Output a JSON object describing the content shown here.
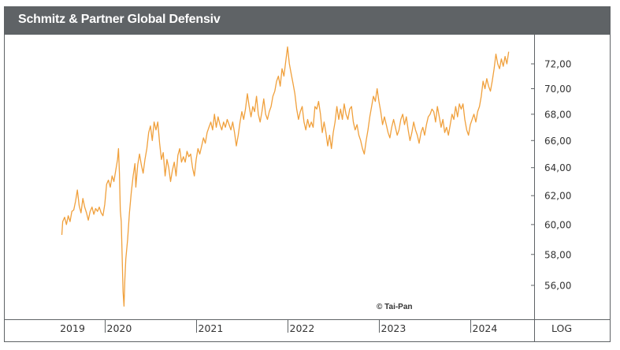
{
  "header": {
    "title": "Schmitz & Partner Global Defensiv"
  },
  "footer": {
    "credit": "© Tai-Pan",
    "scale_mode": "LOG"
  },
  "colors": {
    "line": "#f0a03c",
    "header_bg": "#5f6366",
    "frame": "#5f6366",
    "text": "#333333"
  },
  "chart_data": {
    "type": "line",
    "title": "Schmitz & Partner Global Defensiv",
    "xlabel": "",
    "ylabel": "",
    "yscale": "log",
    "ylim": [
      54.3,
      74.0
    ],
    "xlim": [
      2019.45,
      2024.7
    ],
    "grid": false,
    "legend": "none",
    "y_ticks": [
      {
        "value": 72,
        "label": "72,00"
      },
      {
        "value": 70,
        "label": "70,00"
      },
      {
        "value": 68,
        "label": "68,00"
      },
      {
        "value": 66,
        "label": "66,00"
      },
      {
        "value": 64,
        "label": "64,00"
      },
      {
        "value": 62,
        "label": "62,00"
      },
      {
        "value": 60,
        "label": "60,00"
      },
      {
        "value": 58,
        "label": "58,00"
      },
      {
        "value": 56,
        "label": "56,00"
      }
    ],
    "x_ticks": [
      {
        "value": 2020,
        "label": "2020"
      },
      {
        "value": 2021,
        "label": "2021"
      },
      {
        "value": 2022,
        "label": "2022"
      },
      {
        "value": 2023,
        "label": "2023"
      },
      {
        "value": 2024,
        "label": "2024"
      }
    ],
    "x_first_label": {
      "value": 2019.7,
      "label": "2019"
    },
    "series": [
      {
        "name": "Schmitz & Partner Global Defensiv",
        "points": [
          [
            2019.53,
            59.3
          ],
          [
            2019.54,
            60.2
          ],
          [
            2019.56,
            60.5
          ],
          [
            2019.58,
            60.0
          ],
          [
            2019.6,
            60.6
          ],
          [
            2019.62,
            60.2
          ],
          [
            2019.64,
            60.9
          ],
          [
            2019.66,
            61.0
          ],
          [
            2019.68,
            61.6
          ],
          [
            2019.7,
            62.4
          ],
          [
            2019.72,
            61.3
          ],
          [
            2019.74,
            60.8
          ],
          [
            2019.76,
            61.8
          ],
          [
            2019.78,
            61.2
          ],
          [
            2019.8,
            60.8
          ],
          [
            2019.82,
            60.3
          ],
          [
            2019.84,
            60.9
          ],
          [
            2019.86,
            61.2
          ],
          [
            2019.88,
            60.7
          ],
          [
            2019.9,
            61.1
          ],
          [
            2019.92,
            60.9
          ],
          [
            2019.94,
            61.2
          ],
          [
            2019.96,
            60.8
          ],
          [
            2019.98,
            60.6
          ],
          [
            2020.0,
            61.4
          ],
          [
            2020.02,
            62.8
          ],
          [
            2020.04,
            63.1
          ],
          [
            2020.06,
            62.6
          ],
          [
            2020.08,
            63.4
          ],
          [
            2020.1,
            63.0
          ],
          [
            2020.12,
            63.8
          ],
          [
            2020.14,
            64.6
          ],
          [
            2020.15,
            65.4
          ],
          [
            2020.16,
            63.6
          ],
          [
            2020.17,
            61.0
          ],
          [
            2020.18,
            60.2
          ],
          [
            2020.19,
            58.0
          ],
          [
            2020.2,
            55.6
          ],
          [
            2020.21,
            54.7
          ],
          [
            2020.22,
            56.4
          ],
          [
            2020.23,
            57.7
          ],
          [
            2020.25,
            59.0
          ],
          [
            2020.27,
            60.8
          ],
          [
            2020.29,
            62.2
          ],
          [
            2020.31,
            63.4
          ],
          [
            2020.33,
            64.3
          ],
          [
            2020.34,
            62.6
          ],
          [
            2020.36,
            64.2
          ],
          [
            2020.38,
            65.0
          ],
          [
            2020.4,
            64.2
          ],
          [
            2020.42,
            63.6
          ],
          [
            2020.44,
            64.6
          ],
          [
            2020.46,
            65.4
          ],
          [
            2020.48,
            66.6
          ],
          [
            2020.5,
            67.1
          ],
          [
            2020.52,
            66.0
          ],
          [
            2020.54,
            67.4
          ],
          [
            2020.56,
            66.8
          ],
          [
            2020.58,
            67.4
          ],
          [
            2020.6,
            65.8
          ],
          [
            2020.62,
            64.6
          ],
          [
            2020.64,
            65.1
          ],
          [
            2020.66,
            63.4
          ],
          [
            2020.68,
            64.6
          ],
          [
            2020.7,
            64.0
          ],
          [
            2020.72,
            63.0
          ],
          [
            2020.74,
            63.8
          ],
          [
            2020.76,
            64.4
          ],
          [
            2020.78,
            63.4
          ],
          [
            2020.8,
            64.9
          ],
          [
            2020.82,
            65.4
          ],
          [
            2020.84,
            64.4
          ],
          [
            2020.86,
            64.8
          ],
          [
            2020.88,
            64.4
          ],
          [
            2020.9,
            65.2
          ],
          [
            2020.92,
            64.8
          ],
          [
            2020.94,
            65.0
          ],
          [
            2020.96,
            64.0
          ],
          [
            2020.98,
            63.4
          ],
          [
            2021.0,
            64.6
          ],
          [
            2021.02,
            65.4
          ],
          [
            2021.04,
            65.0
          ],
          [
            2021.06,
            65.6
          ],
          [
            2021.08,
            66.2
          ],
          [
            2021.1,
            65.8
          ],
          [
            2021.12,
            66.6
          ],
          [
            2021.14,
            67.0
          ],
          [
            2021.16,
            67.4
          ],
          [
            2021.18,
            66.8
          ],
          [
            2021.2,
            68.0
          ],
          [
            2021.22,
            67.0
          ],
          [
            2021.24,
            67.8
          ],
          [
            2021.26,
            67.2
          ],
          [
            2021.28,
            66.8
          ],
          [
            2021.3,
            67.4
          ],
          [
            2021.32,
            67.0
          ],
          [
            2021.34,
            67.6
          ],
          [
            2021.36,
            67.2
          ],
          [
            2021.38,
            66.8
          ],
          [
            2021.4,
            67.4
          ],
          [
            2021.42,
            66.6
          ],
          [
            2021.44,
            65.6
          ],
          [
            2021.46,
            66.4
          ],
          [
            2021.48,
            67.4
          ],
          [
            2021.5,
            68.2
          ],
          [
            2021.52,
            67.6
          ],
          [
            2021.54,
            68.4
          ],
          [
            2021.56,
            69.6
          ],
          [
            2021.58,
            68.6
          ],
          [
            2021.6,
            67.8
          ],
          [
            2021.62,
            68.6
          ],
          [
            2021.64,
            68.2
          ],
          [
            2021.66,
            69.4
          ],
          [
            2021.68,
            68.0
          ],
          [
            2021.7,
            67.4
          ],
          [
            2021.72,
            68.2
          ],
          [
            2021.74,
            69.2
          ],
          [
            2021.76,
            68.0
          ],
          [
            2021.78,
            67.6
          ],
          [
            2021.8,
            68.2
          ],
          [
            2021.82,
            68.6
          ],
          [
            2021.84,
            69.4
          ],
          [
            2021.86,
            69.8
          ],
          [
            2021.88,
            70.6
          ],
          [
            2021.9,
            71.0
          ],
          [
            2021.92,
            70.2
          ],
          [
            2021.94,
            71.6
          ],
          [
            2021.96,
            71.0
          ],
          [
            2021.98,
            72.2
          ],
          [
            2022.0,
            73.4
          ],
          [
            2022.02,
            72.0
          ],
          [
            2022.04,
            71.2
          ],
          [
            2022.06,
            70.4
          ],
          [
            2022.08,
            69.6
          ],
          [
            2022.1,
            68.4
          ],
          [
            2022.12,
            67.6
          ],
          [
            2022.14,
            68.2
          ],
          [
            2022.16,
            68.6
          ],
          [
            2022.18,
            67.4
          ],
          [
            2022.2,
            66.8
          ],
          [
            2022.22,
            67.6
          ],
          [
            2022.24,
            67.0
          ],
          [
            2022.26,
            67.4
          ],
          [
            2022.28,
            67.0
          ],
          [
            2022.3,
            68.6
          ],
          [
            2022.32,
            68.4
          ],
          [
            2022.34,
            69.0
          ],
          [
            2022.36,
            68.0
          ],
          [
            2022.38,
            66.6
          ],
          [
            2022.4,
            67.4
          ],
          [
            2022.42,
            66.6
          ],
          [
            2022.44,
            65.6
          ],
          [
            2022.46,
            66.4
          ],
          [
            2022.48,
            65.4
          ],
          [
            2022.5,
            66.6
          ],
          [
            2022.52,
            67.4
          ],
          [
            2022.54,
            68.6
          ],
          [
            2022.56,
            67.6
          ],
          [
            2022.58,
            68.4
          ],
          [
            2022.6,
            67.6
          ],
          [
            2022.62,
            68.8
          ],
          [
            2022.64,
            68.0
          ],
          [
            2022.66,
            67.6
          ],
          [
            2022.68,
            68.4
          ],
          [
            2022.7,
            68.6
          ],
          [
            2022.72,
            67.4
          ],
          [
            2022.74,
            66.8
          ],
          [
            2022.76,
            67.2
          ],
          [
            2022.78,
            66.4
          ],
          [
            2022.8,
            66.0
          ],
          [
            2022.82,
            65.4
          ],
          [
            2022.84,
            65.0
          ],
          [
            2022.86,
            66.0
          ],
          [
            2022.88,
            66.8
          ],
          [
            2022.9,
            67.8
          ],
          [
            2022.92,
            68.6
          ],
          [
            2022.94,
            69.4
          ],
          [
            2022.96,
            69.0
          ],
          [
            2022.98,
            70.0
          ],
          [
            2023.0,
            69.0
          ],
          [
            2023.02,
            68.2
          ],
          [
            2023.04,
            67.2
          ],
          [
            2023.06,
            67.8
          ],
          [
            2023.08,
            67.2
          ],
          [
            2023.1,
            66.6
          ],
          [
            2023.12,
            66.2
          ],
          [
            2023.14,
            67.0
          ],
          [
            2023.16,
            67.6
          ],
          [
            2023.18,
            67.0
          ],
          [
            2023.2,
            66.4
          ],
          [
            2023.22,
            66.8
          ],
          [
            2023.24,
            67.6
          ],
          [
            2023.26,
            68.0
          ],
          [
            2023.28,
            67.2
          ],
          [
            2023.3,
            67.8
          ],
          [
            2023.32,
            66.8
          ],
          [
            2023.34,
            66.0
          ],
          [
            2023.36,
            66.6
          ],
          [
            2023.38,
            67.4
          ],
          [
            2023.4,
            66.8
          ],
          [
            2023.42,
            66.4
          ],
          [
            2023.44,
            65.8
          ],
          [
            2023.46,
            66.6
          ],
          [
            2023.48,
            67.0
          ],
          [
            2023.5,
            66.4
          ],
          [
            2023.52,
            67.2
          ],
          [
            2023.54,
            67.8
          ],
          [
            2023.56,
            68.0
          ],
          [
            2023.58,
            68.4
          ],
          [
            2023.6,
            68.2
          ],
          [
            2023.62,
            67.4
          ],
          [
            2023.64,
            68.6
          ],
          [
            2023.66,
            67.8
          ],
          [
            2023.68,
            67.0
          ],
          [
            2023.7,
            67.6
          ],
          [
            2023.72,
            66.6
          ],
          [
            2023.74,
            67.0
          ],
          [
            2023.76,
            66.4
          ],
          [
            2023.78,
            67.2
          ],
          [
            2023.8,
            68.0
          ],
          [
            2023.82,
            67.6
          ],
          [
            2023.84,
            68.6
          ],
          [
            2023.86,
            67.8
          ],
          [
            2023.88,
            68.8
          ],
          [
            2023.9,
            68.4
          ],
          [
            2023.92,
            68.8
          ],
          [
            2023.94,
            67.6
          ],
          [
            2023.96,
            66.8
          ],
          [
            2023.98,
            66.4
          ],
          [
            2024.0,
            67.2
          ],
          [
            2024.02,
            67.6
          ],
          [
            2024.04,
            68.0
          ],
          [
            2024.06,
            67.4
          ],
          [
            2024.08,
            68.2
          ],
          [
            2024.1,
            68.6
          ],
          [
            2024.12,
            69.4
          ],
          [
            2024.14,
            70.6
          ],
          [
            2024.16,
            70.0
          ],
          [
            2024.18,
            70.8
          ],
          [
            2024.2,
            70.2
          ],
          [
            2024.22,
            69.8
          ],
          [
            2024.24,
            70.6
          ],
          [
            2024.26,
            71.6
          ],
          [
            2024.28,
            72.8
          ],
          [
            2024.3,
            72.0
          ],
          [
            2024.32,
            71.6
          ],
          [
            2024.34,
            72.4
          ],
          [
            2024.36,
            71.8
          ],
          [
            2024.38,
            72.6
          ],
          [
            2024.4,
            72.0
          ],
          [
            2024.42,
            73.0
          ]
        ]
      }
    ]
  }
}
